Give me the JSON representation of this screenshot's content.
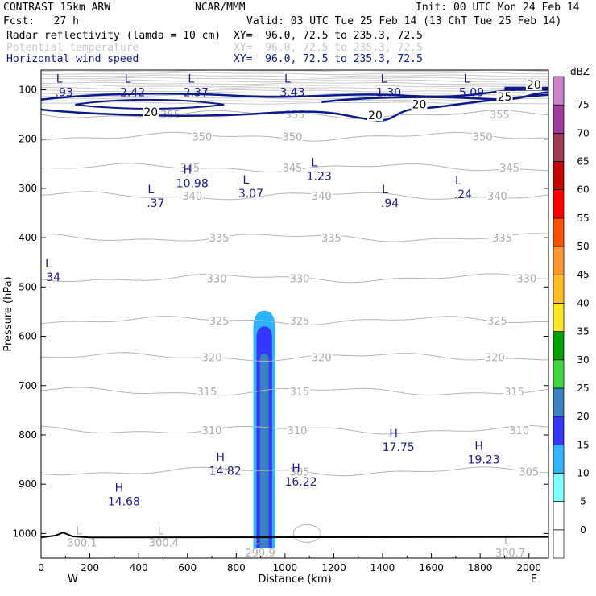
{
  "header": {
    "model": "CONTRAST 15km ARW",
    "org": "NCAR/MMM",
    "init": "Init: 00 UTC Mon 24 Feb 14",
    "fcst": "Fcst:   27 h",
    "valid": "Valid: 03 UTC Tue 25 Feb 14 (13 ChT Tue 25 Feb 14)"
  },
  "fields": [
    {
      "label": "Radar reflectivity (lamda = 10 cm)",
      "xy": "XY=  96.0, 72.5 to 235.3, 72.5",
      "color": "#000000"
    },
    {
      "label": "Potential temperature",
      "xy": "XY=  96.0, 72.5 to 235.3, 72.5",
      "color": "#c8c8c8"
    },
    {
      "label": "Horizontal wind speed",
      "xy": "XY=  96.0, 72.5 to 235.3, 72.5",
      "color": "#0a1a8a"
    }
  ],
  "chart_data": {
    "type": "cross-section",
    "xlabel": "Distance (km)",
    "ylabel": "Pressure (hPa)",
    "xlim": [
      0,
      2080
    ],
    "ylim": [
      1050,
      60
    ],
    "x_ticks": [
      0,
      200,
      400,
      600,
      800,
      1000,
      1200,
      1400,
      1600,
      1800,
      2000
    ],
    "y_ticks": [
      100,
      200,
      300,
      400,
      500,
      600,
      700,
      800,
      900,
      1000
    ],
    "direction_labels": {
      "west": "W",
      "east": "E"
    },
    "colorbar": {
      "unit": "dBZ",
      "levels": [
        0,
        5,
        10,
        15,
        20,
        25,
        30,
        35,
        40,
        45,
        50,
        55,
        60,
        65,
        70,
        75
      ],
      "colors": [
        "#ffffff",
        "#80ffff",
        "#30b4ff",
        "#3636ff",
        "#3a82c0",
        "#3fd63f",
        "#00a000",
        "#ffe61e",
        "#ffbe1e",
        "#ff9632",
        "#ff5000",
        "#ff0000",
        "#c80000",
        "#a03c50",
        "#a03ca0",
        "#c882c8"
      ]
    },
    "theta_contours": [
      {
        "value": 355,
        "p": 150,
        "labels": [
          {
            "x": 530,
            "t": "355"
          },
          {
            "x": 1040,
            "t": "355"
          },
          {
            "x": 1880,
            "t": "355"
          }
        ]
      },
      {
        "value": 350,
        "p": 195,
        "labels": [
          {
            "x": 660,
            "t": "350"
          },
          {
            "x": 1030,
            "t": "350"
          },
          {
            "x": 1810,
            "t": "350"
          }
        ]
      },
      {
        "value": 345,
        "p": 258,
        "labels": [
          {
            "x": 610,
            "t": "345"
          },
          {
            "x": 1030,
            "t": "345"
          },
          {
            "x": 1920,
            "t": "345"
          }
        ]
      },
      {
        "value": 340,
        "p": 315,
        "labels": [
          {
            "x": 620,
            "t": "340"
          },
          {
            "x": 1150,
            "t": "340"
          },
          {
            "x": 1870,
            "t": "340"
          }
        ]
      },
      {
        "value": 335,
        "p": 400,
        "labels": [
          {
            "x": 730,
            "t": "335"
          },
          {
            "x": 1190,
            "t": "335"
          },
          {
            "x": 1890,
            "t": "335"
          }
        ]
      },
      {
        "value": 330,
        "p": 482,
        "labels": [
          {
            "x": 720,
            "t": "330"
          },
          {
            "x": 1060,
            "t": "330"
          },
          {
            "x": 1990,
            "t": "330"
          }
        ]
      },
      {
        "value": 325,
        "p": 568,
        "labels": [
          {
            "x": 730,
            "t": "325"
          },
          {
            "x": 1060,
            "t": "325"
          },
          {
            "x": 1870,
            "t": "325"
          }
        ]
      },
      {
        "value": 320,
        "p": 642,
        "labels": [
          {
            "x": 700,
            "t": "320"
          },
          {
            "x": 1150,
            "t": "320"
          },
          {
            "x": 1860,
            "t": "320"
          }
        ]
      },
      {
        "value": 315,
        "p": 712,
        "labels": [
          {
            "x": 680,
            "t": "315"
          },
          {
            "x": 1060,
            "t": "315"
          },
          {
            "x": 1940,
            "t": "315"
          }
        ]
      },
      {
        "value": 310,
        "p": 790,
        "labels": [
          {
            "x": 700,
            "t": "310"
          },
          {
            "x": 1050,
            "t": "310"
          },
          {
            "x": 1960,
            "t": "310"
          }
        ]
      },
      {
        "value": 305,
        "p": 874,
        "labels": [
          {
            "x": 1060,
            "t": "305"
          },
          {
            "x": 2000,
            "t": "305"
          }
        ]
      }
    ],
    "theta_extrema": [
      {
        "kind": "L",
        "value": "300.1",
        "x": 155,
        "p": 1010
      },
      {
        "kind": "L",
        "value": "300.4",
        "x": 490,
        "p": 1010
      },
      {
        "kind": "L",
        "value": "299.9",
        "x": 885,
        "p": 1030
      },
      {
        "kind": "L",
        "value": "300.7",
        "x": 1910,
        "p": 1030
      }
    ],
    "wind_contours": [
      {
        "value": 20,
        "labels": [
          {
            "x": 450,
            "p": 148,
            "t": "20"
          },
          {
            "x": 1370,
            "p": 155,
            "t": "20"
          },
          {
            "x": 1550,
            "p": 133,
            "t": "20"
          },
          {
            "x": 2020,
            "p": 93,
            "t": "20"
          }
        ]
      },
      {
        "value": 25,
        "labels": [
          {
            "x": 1900,
            "p": 117,
            "t": "25"
          }
        ]
      }
    ],
    "wind_extrema": [
      {
        "kind": "L",
        "value": ".93",
        "x": 75,
        "p": 95
      },
      {
        "kind": "L",
        "value": "2.42",
        "x": 355,
        "p": 95
      },
      {
        "kind": "L",
        "value": "2.37",
        "x": 615,
        "p": 95
      },
      {
        "kind": "L",
        "value": "3.43",
        "x": 1010,
        "p": 95
      },
      {
        "kind": "L",
        "value": "1.30",
        "x": 1405,
        "p": 95
      },
      {
        "kind": "L",
        "value": "5.09",
        "x": 1745,
        "p": 95
      },
      {
        "kind": "H",
        "value": "10.98",
        "x": 600,
        "p": 280
      },
      {
        "kind": "L",
        "value": "1.23",
        "x": 1120,
        "p": 265
      },
      {
        "kind": "L",
        "value": "3.07",
        "x": 840,
        "p": 300
      },
      {
        "kind": "L",
        "value": ".37",
        "x": 450,
        "p": 320
      },
      {
        "kind": "L",
        "value": ".94",
        "x": 1410,
        "p": 320
      },
      {
        "kind": "L",
        "value": ".24",
        "x": 1710,
        "p": 302
      },
      {
        "kind": "L",
        "value": "34",
        "x": 30,
        "p": 470
      },
      {
        "kind": "H",
        "value": "17.75",
        "x": 1445,
        "p": 815
      },
      {
        "kind": "H",
        "value": "19.23",
        "x": 1795,
        "p": 840
      },
      {
        "kind": "H",
        "value": "14.82",
        "x": 735,
        "p": 863
      },
      {
        "kind": "H",
        "value": "16.22",
        "x": 1045,
        "p": 885
      },
      {
        "kind": "H",
        "value": "14.68",
        "x": 320,
        "p": 925
      }
    ],
    "reflectivity_cores": [
      {
        "dbz": 5,
        "x_center": 915,
        "half_width_km": 45,
        "p_top": 548,
        "p_bottom": 1030
      },
      {
        "dbz": 10,
        "x_center": 915,
        "half_width_km": 32,
        "p_top": 580,
        "p_bottom": 1030
      },
      {
        "dbz": 15,
        "x_center": 915,
        "half_width_km": 18,
        "p_top": 635,
        "p_bottom": 1030
      }
    ]
  }
}
